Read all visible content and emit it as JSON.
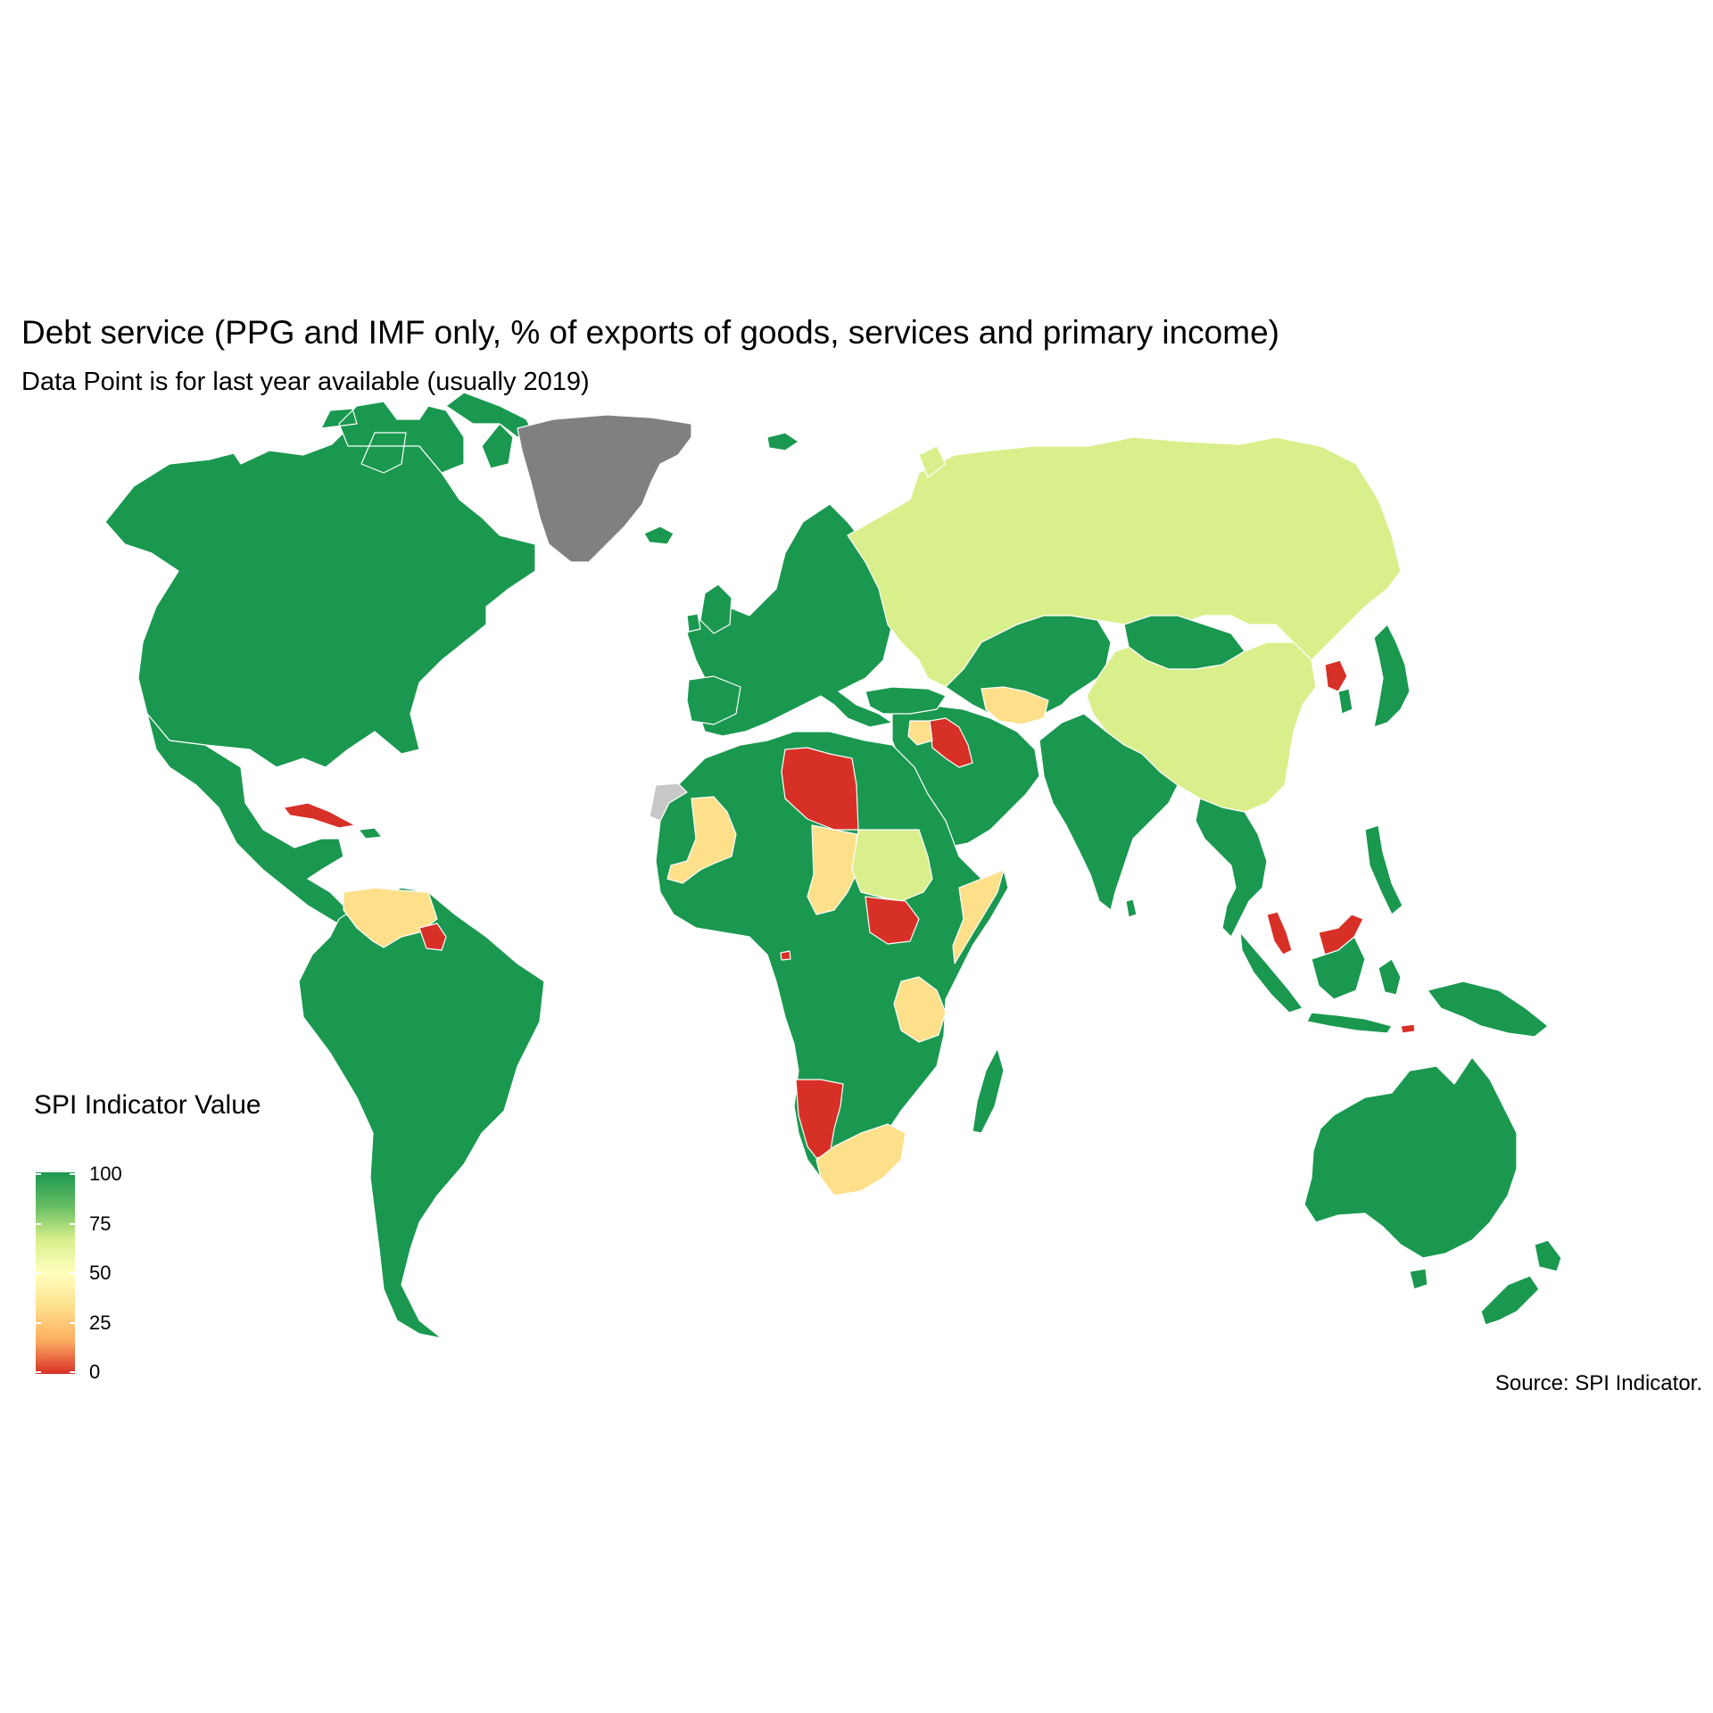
{
  "header": {
    "title": "Debt service (PPG and IMF only, % of exports of goods, services and primary income)",
    "subtitle": "Data Point is for last year available (usually 2019)"
  },
  "caption": "Source: SPI Indicator.",
  "legend": {
    "title": "SPI Indicator Value",
    "min": 0,
    "max": 100,
    "ticks": [
      "100",
      "75",
      "50",
      "25",
      "0"
    ],
    "colors": [
      "#1a9850",
      "#66bd63",
      "#d9ef8b",
      "#ffffbf",
      "#fee08b",
      "#fdae61",
      "#d73027"
    ]
  },
  "map": {
    "fill_colors": {
      "100": "#1a9850",
      "60": "#d9ef8b",
      "30": "#fee08b",
      "0": "#d73027",
      "no_data": "#c8c8c8",
      "greenland": "#808080"
    },
    "border_color": "#ffffff"
  },
  "chart_data": {
    "type": "choropleth",
    "title": "Debt service (PPG and IMF only, % of exports of goods, services and primary income)",
    "subtitle": "Data Point is for last year available (usually 2019)",
    "legend_title": "SPI Indicator Value",
    "scale": {
      "min": 0,
      "max": 100,
      "breaks": [
        0,
        25,
        50,
        75,
        100
      ]
    },
    "regions": [
      {
        "name": "North America",
        "value": 100
      },
      {
        "name": "Mexico & Central America",
        "value": 100
      },
      {
        "name": "Cuba",
        "value": 0
      },
      {
        "name": "South America",
        "value": 100
      },
      {
        "name": "Venezuela",
        "value": 30
      },
      {
        "name": "Suriname",
        "value": 0
      },
      {
        "name": "Greenland",
        "value": null
      },
      {
        "name": "Iceland",
        "value": 100
      },
      {
        "name": "Europe",
        "value": 100
      },
      {
        "name": "Russia",
        "value": 60
      },
      {
        "name": "China",
        "value": 60
      },
      {
        "name": "Sudan",
        "value": 60
      },
      {
        "name": "Kazakhstan & Central Asia",
        "value": 100
      },
      {
        "name": "Mongolia",
        "value": 100
      },
      {
        "name": "Turkmenistan",
        "value": 30
      },
      {
        "name": "Middle East",
        "value": 100
      },
      {
        "name": "Iraq",
        "value": 0
      },
      {
        "name": "Syria",
        "value": 30
      },
      {
        "name": "India & South Asia",
        "value": 100
      },
      {
        "name": "Southeast Asia",
        "value": 100
      },
      {
        "name": "Malaysia",
        "value": 0
      },
      {
        "name": "North Korea",
        "value": 0
      },
      {
        "name": "Japan",
        "value": 100
      },
      {
        "name": "North Africa",
        "value": 100
      },
      {
        "name": "Libya",
        "value": 0
      },
      {
        "name": "Mali",
        "value": 30
      },
      {
        "name": "Chad",
        "value": 30
      },
      {
        "name": "South Sudan",
        "value": 0
      },
      {
        "name": "Somalia",
        "value": 30
      },
      {
        "name": "Tanzania",
        "value": 30
      },
      {
        "name": "Namibia",
        "value": 0
      },
      {
        "name": "South Africa",
        "value": 30
      },
      {
        "name": "Sub-Saharan Africa",
        "value": 100
      },
      {
        "name": "Madagascar",
        "value": 100
      },
      {
        "name": "Indonesia & Papua",
        "value": 100
      },
      {
        "name": "Australia",
        "value": 100
      },
      {
        "name": "New Zealand",
        "value": 100
      },
      {
        "name": "Western Sahara",
        "value": null
      }
    ]
  }
}
